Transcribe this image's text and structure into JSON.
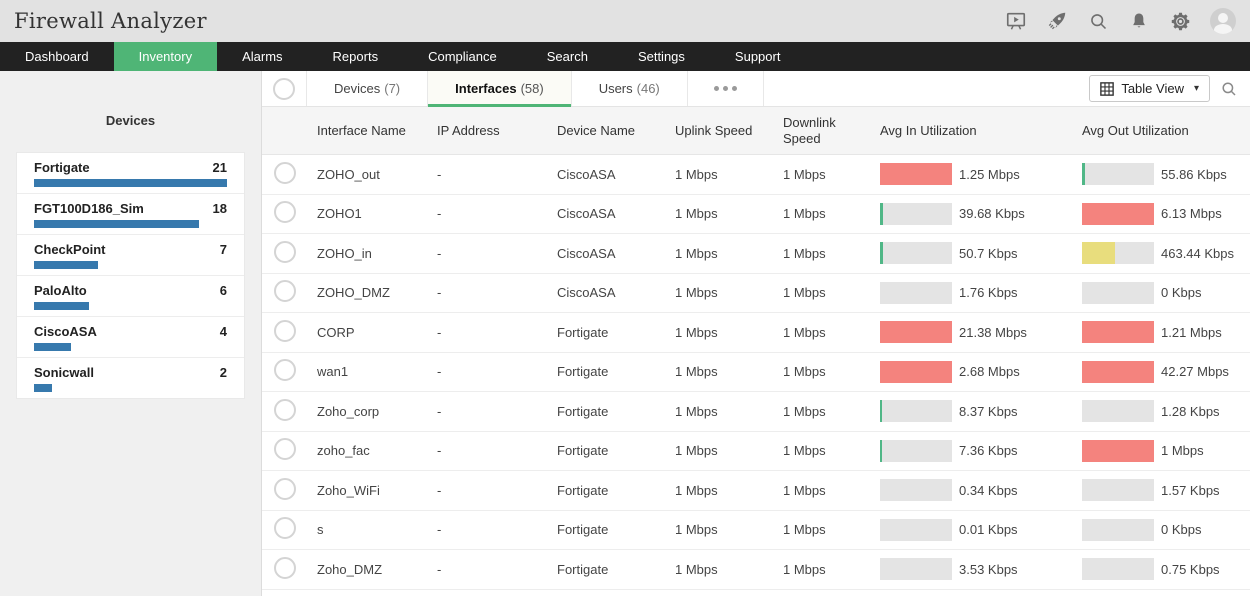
{
  "app": {
    "title": "Firewall Analyzer"
  },
  "header": {
    "icons": [
      "presentation-icon",
      "rocket-icon",
      "search-icon",
      "bell-icon",
      "gear-icon",
      "avatar"
    ]
  },
  "nav": {
    "items": [
      {
        "label": "Dashboard",
        "active": false
      },
      {
        "label": "Inventory",
        "active": true
      },
      {
        "label": "Alarms",
        "active": false
      },
      {
        "label": "Reports",
        "active": false
      },
      {
        "label": "Compliance",
        "active": false
      },
      {
        "label": "Search",
        "active": false
      },
      {
        "label": "Settings",
        "active": false
      },
      {
        "label": "Support",
        "active": false
      }
    ]
  },
  "sidebar": {
    "title": "Devices",
    "max_count": 21,
    "items": [
      {
        "name": "Fortigate",
        "count": 21
      },
      {
        "name": "FGT100D186_Sim",
        "count": 18
      },
      {
        "name": "CheckPoint",
        "count": 7
      },
      {
        "name": "PaloAlto",
        "count": 6
      },
      {
        "name": "CiscoASA",
        "count": 4
      },
      {
        "name": "Sonicwall",
        "count": 2
      }
    ]
  },
  "toolbar": {
    "tabs": [
      {
        "label": "Devices",
        "count": "(7)",
        "active": false
      },
      {
        "label": "Interfaces",
        "count": "(58)",
        "active": true
      },
      {
        "label": "Users",
        "count": "(46)",
        "active": false
      }
    ],
    "view_button_label": "Table View"
  },
  "table": {
    "columns": [
      "Interface Name",
      "IP Address",
      "Device Name",
      "Uplink Speed",
      "Downlink Speed",
      "Avg In Utilization",
      "Avg Out Utilization"
    ],
    "rows": [
      {
        "name": "ZOHO_out",
        "ip": "-",
        "device": "CiscoASA",
        "uplink": "1 Mbps",
        "downlink": "1 Mbps",
        "in": {
          "value": "1.25 Mbps",
          "pct": 100,
          "level": "red"
        },
        "out": {
          "value": "55.86 Kbps",
          "pct": 4,
          "level": "green"
        }
      },
      {
        "name": "ZOHO1",
        "ip": "-",
        "device": "CiscoASA",
        "uplink": "1 Mbps",
        "downlink": "1 Mbps",
        "in": {
          "value": "39.68 Kbps",
          "pct": 4,
          "level": "green"
        },
        "out": {
          "value": "6.13 Mbps",
          "pct": 100,
          "level": "red"
        }
      },
      {
        "name": "ZOHO_in",
        "ip": "-",
        "device": "CiscoASA",
        "uplink": "1 Mbps",
        "downlink": "1 Mbps",
        "in": {
          "value": "50.7 Kbps",
          "pct": 4,
          "level": "green"
        },
        "out": {
          "value": "463.44 Kbps",
          "pct": 46,
          "level": "yellow"
        }
      },
      {
        "name": "ZOHO_DMZ",
        "ip": "-",
        "device": "CiscoASA",
        "uplink": "1 Mbps",
        "downlink": "1 Mbps",
        "in": {
          "value": "1.76 Kbps",
          "pct": 0,
          "level": "none"
        },
        "out": {
          "value": "0 Kbps",
          "pct": 0,
          "level": "none"
        }
      },
      {
        "name": "CORP",
        "ip": "-",
        "device": "Fortigate",
        "uplink": "1 Mbps",
        "downlink": "1 Mbps",
        "in": {
          "value": "21.38 Mbps",
          "pct": 100,
          "level": "red"
        },
        "out": {
          "value": "1.21 Mbps",
          "pct": 100,
          "level": "red"
        }
      },
      {
        "name": "wan1",
        "ip": "-",
        "device": "Fortigate",
        "uplink": "1 Mbps",
        "downlink": "1 Mbps",
        "in": {
          "value": "2.68 Mbps",
          "pct": 100,
          "level": "red"
        },
        "out": {
          "value": "42.27 Mbps",
          "pct": 100,
          "level": "red"
        }
      },
      {
        "name": "Zoho_corp",
        "ip": "-",
        "device": "Fortigate",
        "uplink": "1 Mbps",
        "downlink": "1 Mbps",
        "in": {
          "value": "8.37 Kbps",
          "pct": 3,
          "level": "green"
        },
        "out": {
          "value": "1.28 Kbps",
          "pct": 0,
          "level": "none"
        }
      },
      {
        "name": "zoho_fac",
        "ip": "-",
        "device": "Fortigate",
        "uplink": "1 Mbps",
        "downlink": "1 Mbps",
        "in": {
          "value": "7.36 Kbps",
          "pct": 3,
          "level": "green"
        },
        "out": {
          "value": "1 Mbps",
          "pct": 100,
          "level": "red"
        }
      },
      {
        "name": "Zoho_WiFi",
        "ip": "-",
        "device": "Fortigate",
        "uplink": "1 Mbps",
        "downlink": "1 Mbps",
        "in": {
          "value": "0.34 Kbps",
          "pct": 0,
          "level": "none"
        },
        "out": {
          "value": "1.57 Kbps",
          "pct": 0,
          "level": "none"
        }
      },
      {
        "name": "s",
        "ip": "-",
        "device": "Fortigate",
        "uplink": "1 Mbps",
        "downlink": "1 Mbps",
        "in": {
          "value": "0.01 Kbps",
          "pct": 0,
          "level": "none"
        },
        "out": {
          "value": "0 Kbps",
          "pct": 0,
          "level": "none"
        }
      },
      {
        "name": "Zoho_DMZ",
        "ip": "-",
        "device": "Fortigate",
        "uplink": "1 Mbps",
        "downlink": "1 Mbps",
        "in": {
          "value": "3.53 Kbps",
          "pct": 0,
          "level": "none"
        },
        "out": {
          "value": "0.75 Kbps",
          "pct": 0,
          "level": "none"
        }
      }
    ]
  },
  "colors": {
    "accent_green": "#4FB576",
    "nav_bg": "#222222",
    "bar_blue": "#3779AD",
    "util_red": "#F4837E",
    "util_yellow": "#E8DD7D",
    "util_green": "#50B787",
    "util_track": "#E4E4E4"
  }
}
